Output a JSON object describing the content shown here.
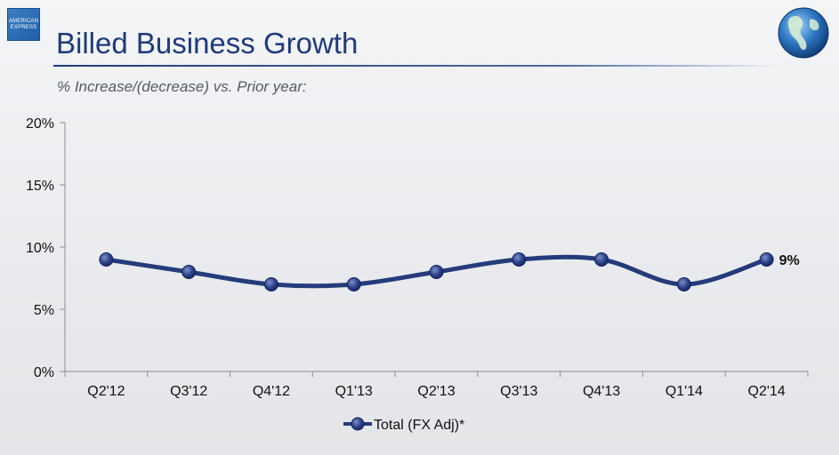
{
  "header": {
    "logo_text_line1": "AMERICAN",
    "logo_text_line2": "EXPRESS",
    "title": "Billed Business Growth",
    "subtitle": "% Increase/(decrease) vs. Prior year:"
  },
  "colors": {
    "title": "#1f3a7a",
    "series_line": "#253b7a",
    "marker": "#2a3f86"
  },
  "chart_data": {
    "type": "line",
    "title": "Billed Business Growth",
    "subtitle": "% Increase/(decrease) vs. Prior year:",
    "xlabel": "",
    "ylabel": "",
    "categories": [
      "Q2'12",
      "Q3'12",
      "Q4'12",
      "Q1'13",
      "Q2'13",
      "Q3'13",
      "Q4'13",
      "Q1'14",
      "Q2'14"
    ],
    "series": [
      {
        "name": "Total (FX Adj)*",
        "values": [
          9,
          8,
          7,
          7,
          8,
          9,
          9,
          7,
          9
        ]
      }
    ],
    "ylim": [
      0,
      20
    ],
    "yticks": [
      0,
      5,
      10,
      15,
      20
    ],
    "ytick_labels": [
      "0%",
      "5%",
      "10%",
      "15%",
      "20%"
    ],
    "annotations": [
      {
        "category": "Q2'14",
        "text": "9%"
      }
    ],
    "legend": "bottom-center",
    "grid": false
  }
}
